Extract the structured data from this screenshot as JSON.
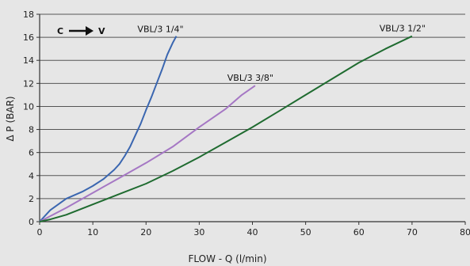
{
  "chart_data": {
    "type": "line",
    "xlabel": "FLOW - Q (l/min)",
    "ylabel": "Δ P (BAR)",
    "xlim": [
      0,
      80
    ],
    "ylim": [
      0,
      18
    ],
    "x_ticks": [
      0,
      10,
      20,
      30,
      40,
      50,
      60,
      70,
      80
    ],
    "y_ticks": [
      0,
      2,
      4,
      6,
      8,
      10,
      12,
      14,
      16,
      18
    ],
    "grid": "horizontal",
    "annotation": {
      "from": "C",
      "to": "V"
    },
    "colors": {
      "background": "#e6e6e6",
      "grid": "#555555",
      "axis": "#333333"
    },
    "series": [
      {
        "name": "VBL/3 1/4\"",
        "color": "#3a66b0",
        "points": [
          [
            0,
            0
          ],
          [
            2,
            1
          ],
          [
            5,
            2
          ],
          [
            8,
            2.6
          ],
          [
            10,
            3.1
          ],
          [
            12,
            3.7
          ],
          [
            14,
            4.5
          ],
          [
            15,
            5
          ],
          [
            16,
            5.7
          ],
          [
            17,
            6.5
          ],
          [
            18,
            7.5
          ],
          [
            19,
            8.5
          ],
          [
            20,
            9.7
          ],
          [
            21,
            10.8
          ],
          [
            22,
            12
          ],
          [
            23,
            13.2
          ],
          [
            24,
            14.5
          ],
          [
            25,
            15.5
          ],
          [
            25.7,
            16.1
          ]
        ]
      },
      {
        "name": "VBL/3 3/8\"",
        "color": "#a577c4",
        "points": [
          [
            0,
            0
          ],
          [
            5,
            1.2
          ],
          [
            10,
            2.5
          ],
          [
            15,
            3.8
          ],
          [
            20,
            5.1
          ],
          [
            25,
            6.5
          ],
          [
            30,
            8.2
          ],
          [
            35,
            9.8
          ],
          [
            38,
            11
          ],
          [
            40.5,
            11.8
          ]
        ]
      },
      {
        "name": "VBL/3 1/2\"",
        "color": "#1f6b30",
        "points": [
          [
            0,
            0
          ],
          [
            2,
            0.2
          ],
          [
            5,
            0.6
          ],
          [
            10,
            1.5
          ],
          [
            15,
            2.4
          ],
          [
            20,
            3.3
          ],
          [
            25,
            4.4
          ],
          [
            30,
            5.6
          ],
          [
            35,
            6.9
          ],
          [
            40,
            8.2
          ],
          [
            45,
            9.6
          ],
          [
            50,
            11
          ],
          [
            55,
            12.4
          ],
          [
            60,
            13.8
          ],
          [
            65,
            15
          ],
          [
            70,
            16.1
          ]
        ]
      }
    ]
  }
}
